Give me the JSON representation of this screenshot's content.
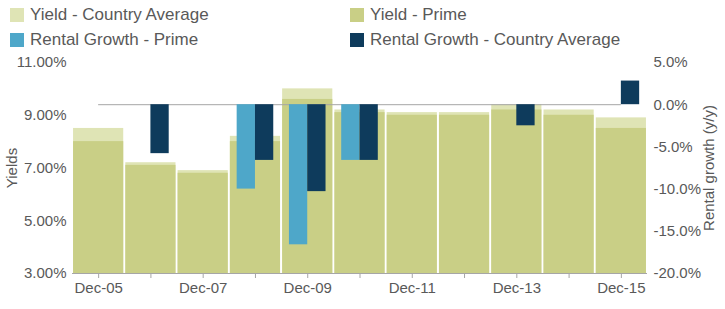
{
  "chart_data": {
    "type": "bar",
    "categories": [
      "Dec-05",
      null,
      "Dec-07",
      null,
      "Dec-09",
      null,
      "Dec-11",
      null,
      "Dec-13",
      null,
      "Dec-15"
    ],
    "series": [
      {
        "name": "Yield - Country Average",
        "color": "#dfe4b5",
        "values": [
          8.5,
          7.2,
          6.9,
          8.2,
          10.0,
          9.2,
          9.1,
          9.1,
          9.4,
          9.2,
          8.9
        ]
      },
      {
        "name": "Yield - Prime",
        "color": "#c9cf86",
        "values": [
          8.0,
          7.1,
          6.8,
          8.0,
          9.6,
          9.1,
          9.0,
          9.0,
          9.2,
          9.0,
          8.5
        ]
      },
      {
        "name": "Rental Growth - Prime",
        "color": "#4ea7c9",
        "axis": "y2",
        "values": [
          null,
          null,
          null,
          -10.0,
          -16.6,
          -6.6,
          null,
          null,
          null,
          null,
          null
        ]
      },
      {
        "name": "Rental Growth - Country Average",
        "color": "#0e3b5c",
        "axis": "y2",
        "values": [
          null,
          -5.8,
          null,
          -6.6,
          -10.3,
          -6.6,
          null,
          null,
          -2.5,
          null,
          2.8
        ]
      }
    ],
    "y_label": "Yields",
    "y2_label": "Rental growth (y/y)",
    "ylim": [
      3,
      11
    ],
    "yticks": [
      {
        "value": 3,
        "label": "3.00%"
      },
      {
        "value": 5,
        "label": "5.00%"
      },
      {
        "value": 7,
        "label": "7.00%"
      },
      {
        "value": 9,
        "label": "9.00%"
      },
      {
        "value": 11,
        "label": "11.00%"
      }
    ],
    "y2lim": [
      -20,
      5
    ],
    "y2ticks": [
      {
        "value": -20,
        "label": "-20.0%"
      },
      {
        "value": -15,
        "label": "-15.0%"
      },
      {
        "value": -10,
        "label": "-10.0%"
      },
      {
        "value": -5,
        "label": "-5.0%"
      },
      {
        "value": 0,
        "label": "0.0%"
      },
      {
        "value": 5,
        "label": "5.0%"
      }
    ],
    "legend": "top"
  }
}
